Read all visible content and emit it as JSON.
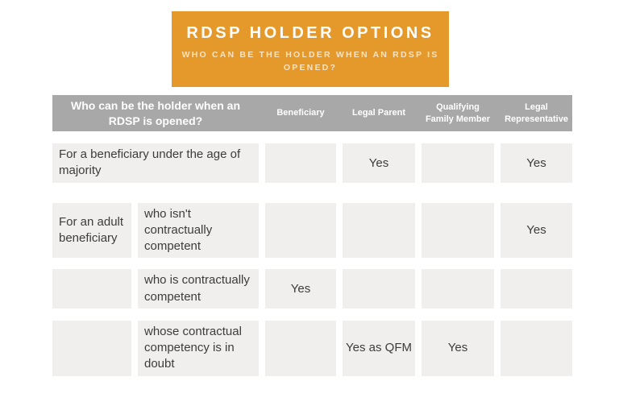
{
  "banner": {
    "title": "RDSP HOLDER OPTIONS",
    "subtitle": "WHO CAN BE THE HOLDER WHEN AN RDSP IS OPENED?",
    "bg_color": "#E6992B",
    "title_color": "#FFFFFF"
  },
  "table": {
    "header": {
      "question": "Who can be the holder when an RDSP is opened?",
      "columns": [
        "Beneficiary",
        "Legal Parent",
        "Qualifying Family Member",
        "Legal Representative"
      ],
      "bg_color": "#A9A8A8",
      "text_color": "#FFFFFF"
    },
    "cell_bg": "#F0EFED",
    "text_color": "#3C3C3B",
    "rows": [
      {
        "label": "For a beneficiary under the age of majority",
        "cells": [
          "",
          "Yes",
          "",
          "Yes"
        ]
      },
      {
        "label1": "For an adult beneficiary",
        "label2": "who isn't contractually competent",
        "cells": [
          "",
          "",
          "",
          "Yes"
        ]
      },
      {
        "label1": "",
        "label2": "who is contractually competent",
        "cells": [
          "Yes",
          "",
          "",
          ""
        ]
      },
      {
        "label1": "",
        "label2": "whose contractual competency is in doubt",
        "cells": [
          "",
          "Yes as QFM",
          "Yes",
          ""
        ]
      }
    ]
  },
  "chart_data": {
    "type": "table",
    "title": "RDSP HOLDER OPTIONS",
    "subtitle": "WHO CAN BE THE HOLDER WHEN AN RDSP IS OPENED?",
    "row_header": "Who can be the holder when an RDSP is opened?",
    "columns": [
      "Beneficiary",
      "Legal Parent",
      "Qualifying Family Member",
      "Legal Representative"
    ],
    "rows": [
      {
        "scenario": "For a beneficiary under the age of majority",
        "condition": "",
        "Beneficiary": "",
        "Legal Parent": "Yes",
        "Qualifying Family Member": "",
        "Legal Representative": "Yes"
      },
      {
        "scenario": "For an adult beneficiary",
        "condition": "who isn't contractually competent",
        "Beneficiary": "",
        "Legal Parent": "",
        "Qualifying Family Member": "",
        "Legal Representative": "Yes"
      },
      {
        "scenario": "For an adult beneficiary",
        "condition": "who is contractually competent",
        "Beneficiary": "Yes",
        "Legal Parent": "",
        "Qualifying Family Member": "",
        "Legal Representative": ""
      },
      {
        "scenario": "For an adult beneficiary",
        "condition": "whose contractual competency is in doubt",
        "Beneficiary": "",
        "Legal Parent": "Yes as QFM",
        "Qualifying Family Member": "Yes",
        "Legal Representative": ""
      }
    ],
    "layout": {
      "legend": false,
      "grid": false,
      "banner_color": "#E6992B",
      "header_color": "#A9A8A8",
      "cell_color": "#F0EFED"
    }
  }
}
